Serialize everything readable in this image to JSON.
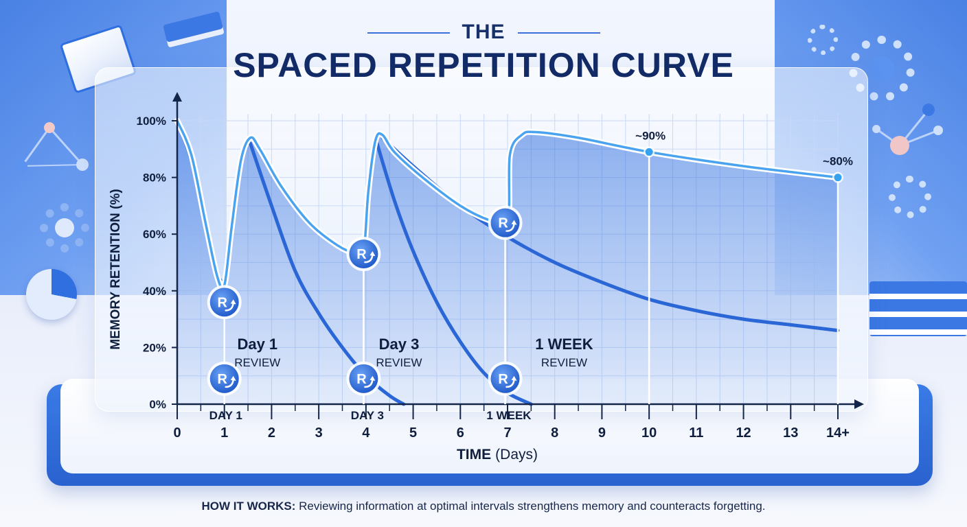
{
  "header": {
    "title_small": "THE",
    "title_main": "SPACED REPETITION CURVE"
  },
  "footer": {
    "label": "HOW IT WORKS:",
    "text": "Reviewing information at optimal intervals strengthens memory and counteracts forgetting."
  },
  "colors": {
    "primary": "#2f6fe0",
    "curve_dark": "#2a66d6",
    "curve_light": "#4aa3ef",
    "title": "#122a66",
    "axis": "#14254a"
  },
  "icons": [
    "review-icon",
    "book-icon",
    "gear-icon",
    "pie-chart-icon",
    "molecule-icon"
  ],
  "chart_data": {
    "type": "line",
    "title": "THE SPACED REPETITION CURVE",
    "xlabel_bold": "TIME",
    "xlabel_rest": "(Days)",
    "ylabel": "MEMORY RETENTION (%)",
    "xlim": [
      0,
      14
    ],
    "ylim": [
      0,
      100
    ],
    "x_ticks": [
      0,
      1,
      2,
      3,
      4,
      5,
      6,
      7,
      8,
      9,
      10,
      11,
      12,
      13,
      14
    ],
    "x_tick_labels": [
      "0",
      "1",
      "2",
      "3",
      "4",
      "5",
      "6",
      "7",
      "8",
      "9",
      "10",
      "11",
      "12",
      "13",
      "14+"
    ],
    "y_ticks": [
      0,
      20,
      40,
      60,
      80,
      100
    ],
    "y_tick_labels": [
      "0%",
      "20%",
      "40%",
      "60%",
      "80%",
      "100%"
    ],
    "grid": true,
    "review_axis_labels": [
      {
        "x": 1,
        "text": "DAY 1"
      },
      {
        "x": 4,
        "text": "DAY 3"
      },
      {
        "x": 7,
        "text": "1 WEEK"
      }
    ],
    "review_labels": [
      {
        "x": 1.7,
        "title": "Day 1",
        "subtitle": "REVIEW"
      },
      {
        "x": 4.7,
        "title": "Day 3",
        "subtitle": "REVIEW"
      },
      {
        "x": 8.2,
        "title": "1 WEEK",
        "subtitle": "REVIEW"
      }
    ],
    "annotations": [
      {
        "x": 10,
        "y": 89,
        "text": "~90%"
      },
      {
        "x": 14,
        "y": 80,
        "text": "~80%"
      }
    ],
    "series": [
      {
        "role": "main",
        "points": [
          [
            0,
            100
          ],
          [
            0.3,
            88
          ],
          [
            0.6,
            64
          ],
          [
            0.85,
            45
          ],
          [
            1.0,
            42
          ],
          [
            1.15,
            62
          ],
          [
            1.35,
            86
          ],
          [
            1.55,
            94
          ],
          [
            1.75,
            90
          ],
          [
            2.2,
            77
          ],
          [
            2.8,
            64
          ],
          [
            3.4,
            56
          ],
          [
            3.8,
            53
          ],
          [
            3.95,
            53
          ],
          [
            4.05,
            75
          ],
          [
            4.2,
            93
          ],
          [
            4.35,
            95
          ],
          [
            4.6,
            89
          ],
          [
            5.2,
            80
          ],
          [
            6,
            70
          ],
          [
            6.6,
            65
          ],
          [
            7.0,
            64
          ],
          [
            7.05,
            88
          ],
          [
            7.3,
            95
          ],
          [
            7.6,
            96
          ],
          [
            8.5,
            94
          ],
          [
            10,
            89
          ],
          [
            12,
            84
          ],
          [
            14,
            80
          ]
        ]
      },
      {
        "role": "decay",
        "points": [
          [
            0,
            100
          ],
          [
            0.3,
            86
          ],
          [
            0.6,
            65
          ],
          [
            0.8,
            48
          ],
          [
            0.95,
            43
          ]
        ]
      },
      {
        "role": "decay",
        "points": [
          [
            1.55,
            92
          ],
          [
            2,
            70
          ],
          [
            2.5,
            47
          ],
          [
            3,
            32
          ],
          [
            3.5,
            20
          ],
          [
            4,
            10
          ],
          [
            4.5,
            3
          ],
          [
            4.8,
            0
          ]
        ]
      },
      {
        "role": "decay",
        "points": [
          [
            4.2,
            94
          ],
          [
            4.6,
            72
          ],
          [
            5,
            54
          ],
          [
            5.5,
            36
          ],
          [
            6,
            22
          ],
          [
            6.5,
            11
          ],
          [
            7,
            4
          ],
          [
            7.5,
            0
          ]
        ]
      },
      {
        "role": "decay",
        "points": [
          [
            4.35,
            94
          ],
          [
            5,
            84
          ],
          [
            6,
            70
          ],
          [
            7,
            59
          ],
          [
            8,
            50
          ],
          [
            9,
            43
          ],
          [
            10,
            37
          ],
          [
            11,
            33
          ],
          [
            12,
            30
          ],
          [
            13,
            28
          ],
          [
            14,
            26
          ]
        ]
      }
    ],
    "review_markers": [
      {
        "x": 1,
        "y": 36
      },
      {
        "x": 1,
        "y": 9
      },
      {
        "x": 3.95,
        "y": 53
      },
      {
        "x": 3.95,
        "y": 9
      },
      {
        "x": 6.95,
        "y": 64
      },
      {
        "x": 6.95,
        "y": 9
      }
    ],
    "review_marker_letter": "R",
    "points_highlight": [
      {
        "x": 10,
        "y": 89
      },
      {
        "x": 14,
        "y": 80
      }
    ]
  }
}
